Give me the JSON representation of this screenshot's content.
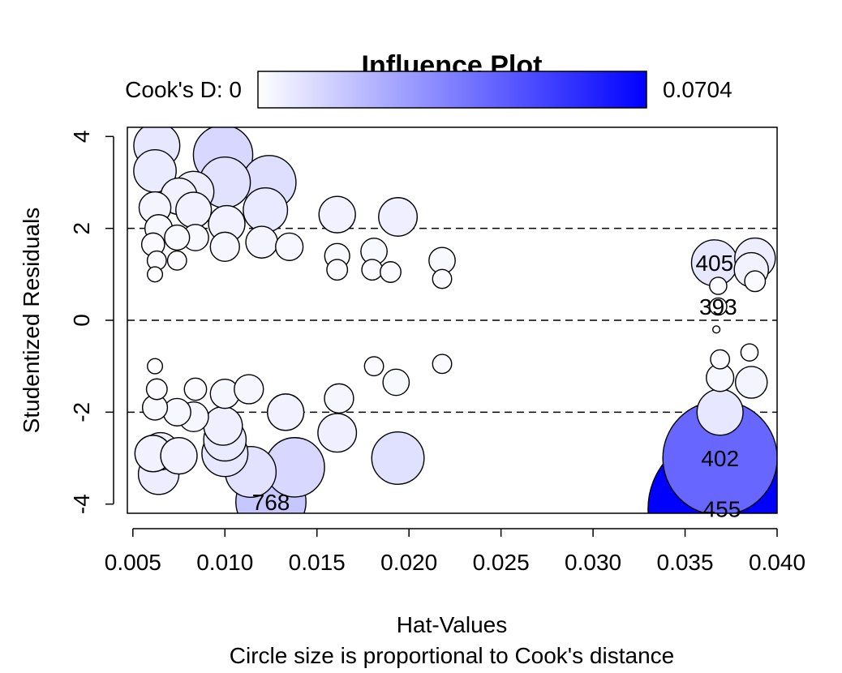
{
  "chart_data": {
    "type": "scatter",
    "title": "Influence Plot",
    "xlabel": "Hat-Values",
    "subtitle": "Circle size is proportional to Cook's distance",
    "ylabel": "Studentized Residuals",
    "xlim": [
      0.0047,
      0.04
    ],
    "ylim": [
      -4.2,
      4.2
    ],
    "x_ticks": [
      "0.005",
      "0.010",
      "0.015",
      "0.020",
      "0.025",
      "0.030",
      "0.035",
      "0.040"
    ],
    "y_ticks": [
      "-4",
      "-2",
      "0",
      "2",
      "4"
    ],
    "reference_lines_y": [
      -2,
      0,
      2
    ],
    "grid": false,
    "color_scale": {
      "label": "Cook's D: 0",
      "max_label": "0.0704",
      "min": 0,
      "max": 0.0704,
      "low_color": "#ffffff",
      "high_color": "#0000ff"
    },
    "labeled_points": [
      {
        "label": "768",
        "x": 0.0125,
        "y": -3.95,
        "cooks_d": 0.0155
      },
      {
        "label": "405",
        "x": 0.0366,
        "y": 1.25,
        "cooks_d": 0.0065
      },
      {
        "label": "393",
        "x": 0.0368,
        "y": 0.3,
        "cooks_d": 0.0008
      },
      {
        "label": "402",
        "x": 0.0369,
        "y": -3.0,
        "cooks_d": 0.042
      },
      {
        "label": "455",
        "x": 0.037,
        "y": -4.1,
        "cooks_d": 0.0704
      }
    ],
    "points": [
      {
        "x": 0.0063,
        "y": 3.8,
        "cooks_d": 0.0065
      },
      {
        "x": 0.0062,
        "y": 3.25,
        "cooks_d": 0.0055
      },
      {
        "x": 0.0062,
        "y": 2.45,
        "cooks_d": 0.003
      },
      {
        "x": 0.0064,
        "y": 2.0,
        "cooks_d": 0.0022
      },
      {
        "x": 0.0061,
        "y": 1.65,
        "cooks_d": 0.0015
      },
      {
        "x": 0.0063,
        "y": 1.3,
        "cooks_d": 0.001
      },
      {
        "x": 0.0062,
        "y": 1.0,
        "cooks_d": 0.0006
      },
      {
        "x": 0.0062,
        "y": -1.0,
        "cooks_d": 0.0006
      },
      {
        "x": 0.0063,
        "y": -1.5,
        "cooks_d": 0.0012
      },
      {
        "x": 0.0062,
        "y": -1.9,
        "cooks_d": 0.0018
      },
      {
        "x": 0.0061,
        "y": -2.9,
        "cooks_d": 0.004
      },
      {
        "x": 0.0065,
        "y": -2.85,
        "cooks_d": 0.0042
      },
      {
        "x": 0.0064,
        "y": -3.35,
        "cooks_d": 0.005
      },
      {
        "x": 0.0075,
        "y": 2.7,
        "cooks_d": 0.004
      },
      {
        "x": 0.0074,
        "y": 1.8,
        "cooks_d": 0.0018
      },
      {
        "x": 0.0074,
        "y": 1.3,
        "cooks_d": 0.001
      },
      {
        "x": 0.0074,
        "y": -2.0,
        "cooks_d": 0.0022
      },
      {
        "x": 0.0075,
        "y": -2.95,
        "cooks_d": 0.004
      },
      {
        "x": 0.0083,
        "y": 2.8,
        "cooks_d": 0.005
      },
      {
        "x": 0.0083,
        "y": 2.4,
        "cooks_d": 0.0038
      },
      {
        "x": 0.0084,
        "y": 1.8,
        "cooks_d": 0.002
      },
      {
        "x": 0.0084,
        "y": -1.5,
        "cooks_d": 0.0014
      },
      {
        "x": 0.0083,
        "y": -2.1,
        "cooks_d": 0.0026
      },
      {
        "x": 0.0099,
        "y": 3.6,
        "cooks_d": 0.011
      },
      {
        "x": 0.01,
        "y": 3.0,
        "cooks_d": 0.008
      },
      {
        "x": 0.0101,
        "y": 2.1,
        "cooks_d": 0.004
      },
      {
        "x": 0.01,
        "y": 1.6,
        "cooks_d": 0.0025
      },
      {
        "x": 0.01,
        "y": -1.6,
        "cooks_d": 0.0025
      },
      {
        "x": 0.0099,
        "y": -2.3,
        "cooks_d": 0.0045
      },
      {
        "x": 0.01,
        "y": -2.6,
        "cooks_d": 0.0055
      },
      {
        "x": 0.01,
        "y": -2.9,
        "cooks_d": 0.0065
      },
      {
        "x": 0.0124,
        "y": 3.0,
        "cooks_d": 0.009
      },
      {
        "x": 0.0122,
        "y": 2.4,
        "cooks_d": 0.006
      },
      {
        "x": 0.012,
        "y": 1.7,
        "cooks_d": 0.003
      },
      {
        "x": 0.0113,
        "y": -1.5,
        "cooks_d": 0.0025
      },
      {
        "x": 0.0114,
        "y": -3.3,
        "cooks_d": 0.008
      },
      {
        "x": 0.0138,
        "y": -3.2,
        "cooks_d": 0.011
      },
      {
        "x": 0.0133,
        "y": -2.0,
        "cooks_d": 0.004
      },
      {
        "x": 0.0135,
        "y": 1.6,
        "cooks_d": 0.0022
      },
      {
        "x": 0.0161,
        "y": 2.3,
        "cooks_d": 0.004
      },
      {
        "x": 0.0161,
        "y": 1.4,
        "cooks_d": 0.0018
      },
      {
        "x": 0.0161,
        "y": 1.1,
        "cooks_d": 0.0012
      },
      {
        "x": 0.0162,
        "y": -1.7,
        "cooks_d": 0.0025
      },
      {
        "x": 0.0161,
        "y": -2.45,
        "cooks_d": 0.0045
      },
      {
        "x": 0.0181,
        "y": 1.5,
        "cooks_d": 0.002
      },
      {
        "x": 0.018,
        "y": 1.1,
        "cooks_d": 0.0012
      },
      {
        "x": 0.0181,
        "y": -1.0,
        "cooks_d": 0.001
      },
      {
        "x": 0.019,
        "y": 1.05,
        "cooks_d": 0.0012
      },
      {
        "x": 0.0194,
        "y": 2.25,
        "cooks_d": 0.0045
      },
      {
        "x": 0.0194,
        "y": -3.0,
        "cooks_d": 0.0085
      },
      {
        "x": 0.0193,
        "y": -1.35,
        "cooks_d": 0.002
      },
      {
        "x": 0.0218,
        "y": 1.3,
        "cooks_d": 0.002
      },
      {
        "x": 0.0218,
        "y": 0.9,
        "cooks_d": 0.001
      },
      {
        "x": 0.0218,
        "y": -0.95,
        "cooks_d": 0.001
      },
      {
        "x": 0.0388,
        "y": 1.35,
        "cooks_d": 0.005
      },
      {
        "x": 0.0386,
        "y": 1.1,
        "cooks_d": 0.0035
      },
      {
        "x": 0.0388,
        "y": 0.85,
        "cooks_d": 0.0012
      },
      {
        "x": 0.0385,
        "y": -0.7,
        "cooks_d": 0.0008
      },
      {
        "x": 0.0386,
        "y": -1.35,
        "cooks_d": 0.003
      },
      {
        "x": 0.0369,
        "y": -0.85,
        "cooks_d": 0.001
      },
      {
        "x": 0.0369,
        "y": -1.25,
        "cooks_d": 0.0022
      },
      {
        "x": 0.0369,
        "y": -2.0,
        "cooks_d": 0.0065
      },
      {
        "x": 0.0368,
        "y": 0.75,
        "cooks_d": 0.0008
      },
      {
        "x": 0.0367,
        "y": -0.2,
        "cooks_d": 0.0001
      }
    ]
  }
}
